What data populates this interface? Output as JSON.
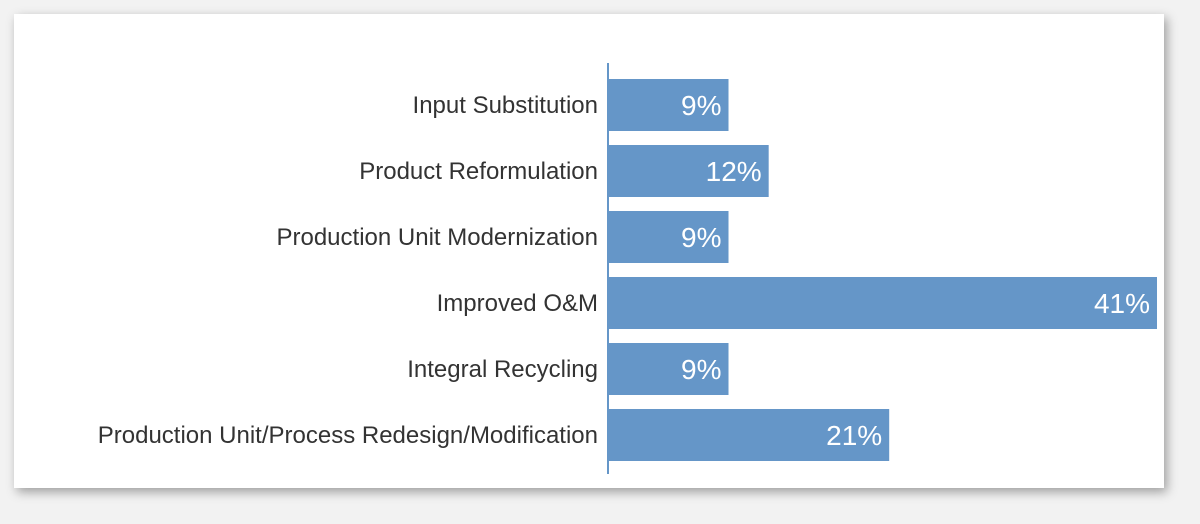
{
  "chart_data": {
    "type": "bar",
    "orientation": "horizontal",
    "categories": [
      "Input Substitution",
      "Product Reformulation",
      "Production Unit Modernization",
      "Improved O&M",
      "Integral Recycling",
      "Production Unit/Process Redesign/Modification"
    ],
    "values": [
      9,
      12,
      9,
      41,
      9,
      21
    ],
    "value_labels": [
      "9%",
      "12%",
      "9%",
      "41%",
      "9%",
      "21%"
    ],
    "unit": "%",
    "title": "",
    "xlabel": "",
    "ylabel": "",
    "xlim": [
      0,
      41
    ],
    "grid": false,
    "legend": "none",
    "bar_color": "#6596c8",
    "axis_color": "#6596c8",
    "label_color": "#333333",
    "value_label_color": "#ffffff"
  }
}
